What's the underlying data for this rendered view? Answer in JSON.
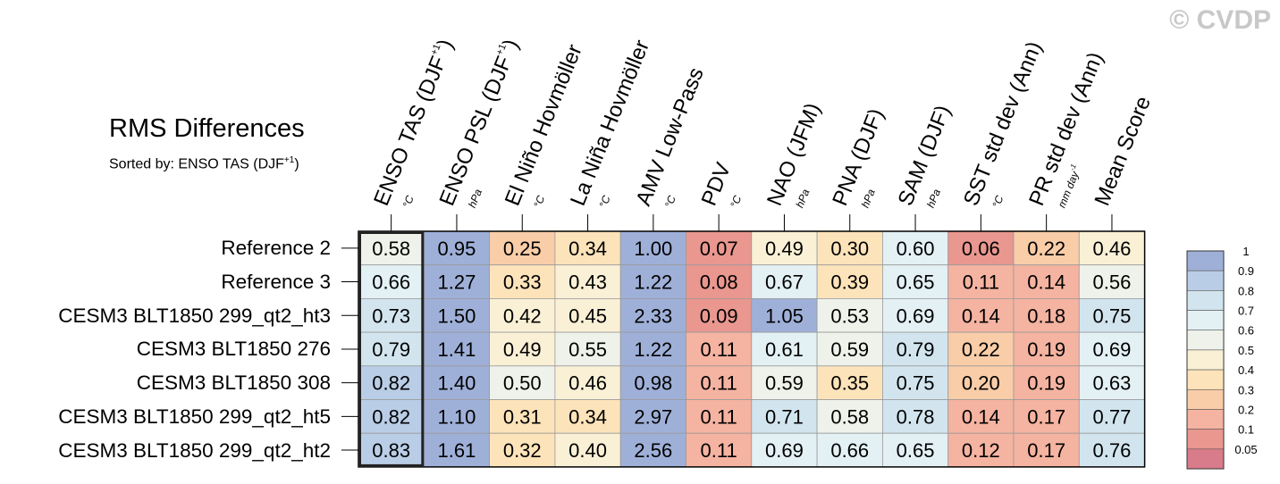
{
  "title": "RMS Differences",
  "subtitle": {
    "prefix": "Sorted by: ENSO TAS (DJF",
    "sup": "+1",
    "suffix": ")"
  },
  "watermark": "© CVDP",
  "columns": [
    {
      "label": "ENSO TAS (DJF",
      "sup": "+1",
      "close": ")",
      "unit": "°C",
      "unit_sup": ""
    },
    {
      "label": "ENSO PSL (DJF",
      "sup": "+1",
      "close": ")",
      "unit": "hPa",
      "unit_sup": ""
    },
    {
      "label": "El Niño Hovmöller",
      "sup": "",
      "close": "",
      "unit": "°C",
      "unit_sup": ""
    },
    {
      "label": "La Niña Hovmöller",
      "sup": "",
      "close": "",
      "unit": "°C",
      "unit_sup": ""
    },
    {
      "label": "AMV Low-Pass",
      "sup": "",
      "close": "",
      "unit": "°C",
      "unit_sup": ""
    },
    {
      "label": "PDV",
      "sup": "",
      "close": "",
      "unit": "°C",
      "unit_sup": ""
    },
    {
      "label": "NAO (JFM)",
      "sup": "",
      "close": "",
      "unit": "hPa",
      "unit_sup": ""
    },
    {
      "label": "PNA (DJF)",
      "sup": "",
      "close": "",
      "unit": "hPa",
      "unit_sup": ""
    },
    {
      "label": "SAM (DJF)",
      "sup": "",
      "close": "",
      "unit": "hPa",
      "unit_sup": ""
    },
    {
      "label": "SST std dev (Ann)",
      "sup": "",
      "close": "",
      "unit": "°C",
      "unit_sup": ""
    },
    {
      "label": "PR std dev (Ann)",
      "sup": "",
      "close": "",
      "unit": "mm day",
      "unit_sup": "-1"
    },
    {
      "label": "Mean Score",
      "sup": "",
      "close": "",
      "unit": "",
      "unit_sup": ""
    }
  ],
  "chart_data": {
    "type": "heatmap",
    "title": "RMS Differences",
    "rows": [
      "Reference 2",
      "Reference 3",
      "CESM3 BLT1850 299_qt2_ht3",
      "CESM3 BLT1850 276",
      "CESM3 BLT1850 308",
      "CESM3 BLT1850 299_qt2_ht5",
      "CESM3 BLT1850 299_qt2_ht2"
    ],
    "columns": [
      "ENSO TAS (DJF+1)",
      "ENSO PSL (DJF+1)",
      "El Niño Hovmöller",
      "La Niña Hovmöller",
      "AMV Low-Pass",
      "PDV",
      "NAO (JFM)",
      "PNA (DJF)",
      "SAM (DJF)",
      "SST std dev (Ann)",
      "PR std dev (Ann)",
      "Mean Score"
    ],
    "values": [
      [
        0.58,
        0.95,
        0.25,
        0.34,
        1.0,
        0.07,
        0.49,
        0.3,
        0.6,
        0.06,
        0.22,
        0.46
      ],
      [
        0.66,
        1.27,
        0.33,
        0.43,
        1.22,
        0.08,
        0.67,
        0.39,
        0.65,
        0.11,
        0.14,
        0.56
      ],
      [
        0.73,
        1.5,
        0.42,
        0.45,
        2.33,
        0.09,
        1.05,
        0.53,
        0.69,
        0.14,
        0.18,
        0.75
      ],
      [
        0.79,
        1.41,
        0.49,
        0.55,
        1.22,
        0.11,
        0.61,
        0.59,
        0.79,
        0.22,
        0.19,
        0.69
      ],
      [
        0.82,
        1.4,
        0.5,
        0.46,
        0.98,
        0.11,
        0.59,
        0.35,
        0.75,
        0.2,
        0.19,
        0.63
      ],
      [
        0.82,
        1.1,
        0.31,
        0.34,
        2.97,
        0.11,
        0.71,
        0.58,
        0.78,
        0.14,
        0.17,
        0.77
      ],
      [
        0.83,
        1.61,
        0.32,
        0.4,
        2.56,
        0.11,
        0.69,
        0.66,
        0.65,
        0.12,
        0.17,
        0.76
      ]
    ],
    "value_format": "0.00",
    "highlighted_column": "ENSO TAS (DJF+1)",
    "colorbar": {
      "levels": [
        0.05,
        0.1,
        0.2,
        0.3,
        0.4,
        0.5,
        0.6,
        0.7,
        0.8,
        0.9,
        1
      ],
      "labels": [
        "0.05",
        "0.1",
        "0.2",
        "0.3",
        "0.4",
        "0.5",
        "0.6",
        "0.7",
        "0.8",
        "0.9",
        "1"
      ],
      "colors": [
        "#d87b8a",
        "#e9978f",
        "#f5b3a1",
        "#f8cda8",
        "#fde3ba",
        "#faf0d6",
        "#eef2ea",
        "#e3f0f4",
        "#d2e5ef",
        "#b9cde6",
        "#9fb0d8"
      ]
    }
  }
}
